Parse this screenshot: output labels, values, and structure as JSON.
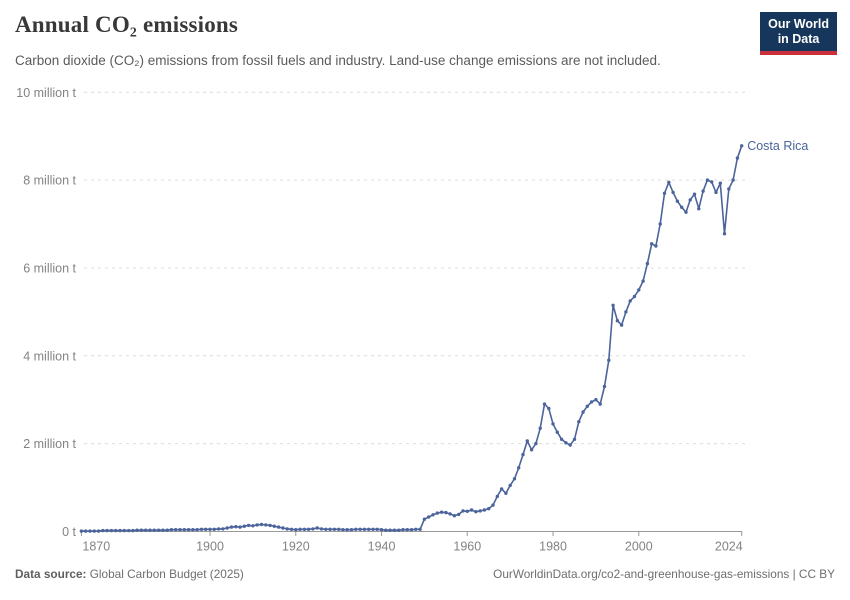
{
  "header": {
    "title": "Annual CO₂ emissions",
    "subtitle": "Carbon dioxide (CO₂) emissions from fossil fuels and industry. Land-use change emissions are not included.",
    "logo_line1": "Our World",
    "logo_line2": "in Data"
  },
  "footer": {
    "source_label": "Data source:",
    "source_value": "Global Carbon Budget (2025)",
    "attribution": "OurWorldinData.org/co2-and-greenhouse-gas-emissions | CC BY"
  },
  "colors": {
    "line": "#4b649b",
    "grid": "#dcdcdc",
    "axis": "#9a9a9a",
    "tick_text": "#838383",
    "title_text": "#383838",
    "subtitle_text": "#5b5b5b",
    "logo_bg": "#16365c",
    "logo_red": "#c9303b"
  },
  "chart_data": {
    "type": "line",
    "title": "Annual CO₂ emissions",
    "unit": "million tonnes",
    "grid": true,
    "legend_position": "none",
    "entity_annotation": "Costa Rica",
    "ylim": [
      0,
      10
    ],
    "xlim": [
      1870,
      2024
    ],
    "yticks": [
      {
        "value": 0,
        "label": "0 t"
      },
      {
        "value": 2,
        "label": "2 million t"
      },
      {
        "value": 4,
        "label": "4 million t"
      },
      {
        "value": 6,
        "label": "6 million t"
      },
      {
        "value": 8,
        "label": "8 million t"
      },
      {
        "value": 10,
        "label": "10 million t"
      }
    ],
    "xticks": [
      1870,
      1900,
      1920,
      1940,
      1960,
      1980,
      2000,
      2024
    ],
    "years": [
      1870,
      1871,
      1872,
      1873,
      1874,
      1875,
      1876,
      1877,
      1878,
      1879,
      1880,
      1881,
      1882,
      1883,
      1884,
      1885,
      1886,
      1887,
      1888,
      1889,
      1890,
      1891,
      1892,
      1893,
      1894,
      1895,
      1896,
      1897,
      1898,
      1899,
      1900,
      1901,
      1902,
      1903,
      1904,
      1905,
      1906,
      1907,
      1908,
      1909,
      1910,
      1911,
      1912,
      1913,
      1914,
      1915,
      1916,
      1917,
      1918,
      1919,
      1920,
      1921,
      1922,
      1923,
      1924,
      1925,
      1926,
      1927,
      1928,
      1929,
      1930,
      1931,
      1932,
      1933,
      1934,
      1935,
      1936,
      1937,
      1938,
      1939,
      1940,
      1941,
      1942,
      1943,
      1944,
      1945,
      1946,
      1947,
      1948,
      1949,
      1950,
      1951,
      1952,
      1953,
      1954,
      1955,
      1956,
      1957,
      1958,
      1959,
      1960,
      1961,
      1962,
      1963,
      1964,
      1965,
      1966,
      1967,
      1968,
      1969,
      1970,
      1971,
      1972,
      1973,
      1974,
      1975,
      1976,
      1977,
      1978,
      1979,
      1980,
      1981,
      1982,
      1983,
      1984,
      1985,
      1986,
      1987,
      1988,
      1989,
      1990,
      1991,
      1992,
      1993,
      1994,
      1995,
      1996,
      1997,
      1998,
      1999,
      2000,
      2001,
      2002,
      2003,
      2004,
      2005,
      2006,
      2007,
      2008,
      2009,
      2010,
      2011,
      2012,
      2013,
      2014,
      2015,
      2016,
      2017,
      2018,
      2019,
      2020,
      2021,
      2022,
      2023,
      2024
    ],
    "series": [
      {
        "name": "Costa Rica",
        "values": [
          0.01,
          0.01,
          0.01,
          0.01,
          0.01,
          0.02,
          0.02,
          0.02,
          0.02,
          0.02,
          0.02,
          0.02,
          0.02,
          0.03,
          0.03,
          0.03,
          0.03,
          0.03,
          0.03,
          0.03,
          0.03,
          0.04,
          0.04,
          0.04,
          0.04,
          0.04,
          0.04,
          0.04,
          0.05,
          0.05,
          0.05,
          0.05,
          0.06,
          0.06,
          0.08,
          0.1,
          0.11,
          0.1,
          0.12,
          0.14,
          0.13,
          0.15,
          0.16,
          0.15,
          0.14,
          0.12,
          0.1,
          0.08,
          0.06,
          0.05,
          0.04,
          0.05,
          0.05,
          0.05,
          0.06,
          0.08,
          0.06,
          0.05,
          0.05,
          0.05,
          0.05,
          0.04,
          0.04,
          0.04,
          0.05,
          0.05,
          0.05,
          0.05,
          0.05,
          0.05,
          0.04,
          0.03,
          0.03,
          0.03,
          0.03,
          0.04,
          0.04,
          0.04,
          0.05,
          0.05,
          0.28,
          0.33,
          0.38,
          0.42,
          0.44,
          0.43,
          0.4,
          0.36,
          0.39,
          0.47,
          0.46,
          0.49,
          0.45,
          0.47,
          0.49,
          0.52,
          0.6,
          0.8,
          0.97,
          0.87,
          1.05,
          1.2,
          1.45,
          1.75,
          2.06,
          1.86,
          2.0,
          2.35,
          2.9,
          2.8,
          2.45,
          2.26,
          2.1,
          2.02,
          1.97,
          2.1,
          2.5,
          2.72,
          2.85,
          2.95,
          3.0,
          2.9,
          3.3,
          3.9,
          5.15,
          4.8,
          4.7,
          5.0,
          5.25,
          5.35,
          5.5,
          5.7,
          6.1,
          6.55,
          6.5,
          7.0,
          7.7,
          7.95,
          7.72,
          7.52,
          7.38,
          7.27,
          7.55,
          7.68,
          7.35,
          7.75,
          8.0,
          7.96,
          7.72,
          7.93,
          6.78,
          7.8,
          8.0,
          8.5,
          8.78
        ]
      }
    ]
  }
}
